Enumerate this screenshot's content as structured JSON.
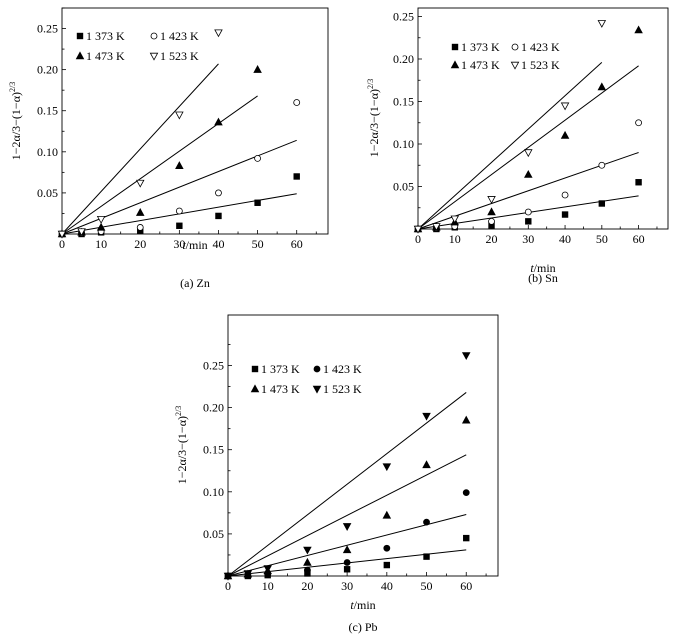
{
  "chart_data": [
    {
      "id": "zn",
      "type": "scatter",
      "caption": "(a) Zn",
      "xlabel_var": "t",
      "xlabel_unit": "/min",
      "ylabel": "1−2α/3−(1−α)",
      "ylabel_exp": "2/3",
      "xlim": [
        0,
        68
      ],
      "ylim": [
        0,
        0.275
      ],
      "xticks": [
        0,
        10,
        20,
        30,
        40,
        50,
        60
      ],
      "xtick_labels": [
        "0",
        "10",
        "20",
        "30",
        "40",
        "50",
        "60"
      ],
      "yticks": [
        0.05,
        0.1,
        0.15,
        0.2,
        0.25
      ],
      "ytick_labels": [
        "0.05",
        "0.10",
        "0.15",
        "0.20",
        "0.25"
      ],
      "series": [
        {
          "name": "1 373 K",
          "marker": "square",
          "x": [
            0,
            5,
            10,
            20,
            30,
            40,
            50,
            60
          ],
          "y": [
            0,
            0.0,
            0.002,
            0.004,
            0.01,
            0.022,
            0.038,
            0.07
          ],
          "fit": [
            0,
            60,
            0.049
          ]
        },
        {
          "name": "1 423 K",
          "marker": "circle-open",
          "x": [
            0,
            5,
            10,
            20,
            30,
            40,
            50,
            60
          ],
          "y": [
            0,
            0.001,
            0.003,
            0.008,
            0.028,
            0.05,
            0.092,
            0.16
          ],
          "fit": [
            0,
            60,
            0.114
          ]
        },
        {
          "name": "1 473 K",
          "marker": "triangle-up",
          "x": [
            0,
            5,
            10,
            20,
            30,
            40,
            50
          ],
          "y": [
            0,
            0.002,
            0.008,
            0.026,
            0.083,
            0.136,
            0.2
          ],
          "fit": [
            0,
            50,
            0.168
          ]
        },
        {
          "name": "1 523 K",
          "marker": "triangle-down-open",
          "x": [
            0,
            5,
            10,
            20,
            30,
            40
          ],
          "y": [
            0,
            0.003,
            0.018,
            0.062,
            0.145,
            0.245
          ],
          "fit": [
            0,
            40,
            0.207
          ]
        }
      ]
    },
    {
      "id": "sn",
      "type": "scatter",
      "caption": "(b) Sn",
      "xlabel_var": "t",
      "xlabel_unit": "/min",
      "ylabel": "1−2α/3−(1−α)",
      "ylabel_exp": "2/3",
      "xlim": [
        0,
        68
      ],
      "ylim": [
        0,
        0.26
      ],
      "xticks": [
        0,
        10,
        20,
        30,
        40,
        50,
        60
      ],
      "xtick_labels": [
        "0",
        "10",
        "20",
        "30",
        "40",
        "50",
        "60"
      ],
      "yticks": [
        0.05,
        0.1,
        0.15,
        0.2,
        0.25
      ],
      "ytick_labels": [
        "0.05",
        "0.10",
        "0.15",
        "0.20",
        "0.25"
      ],
      "series": [
        {
          "name": "1 373 K",
          "marker": "square",
          "x": [
            0,
            5,
            10,
            20,
            30,
            40,
            50,
            60
          ],
          "y": [
            0,
            0.0,
            0.002,
            0.004,
            0.009,
            0.017,
            0.03,
            0.055
          ],
          "fit": [
            0,
            60,
            0.039
          ]
        },
        {
          "name": "1 423 K",
          "marker": "circle-open",
          "x": [
            0,
            5,
            10,
            20,
            30,
            40,
            50,
            60
          ],
          "y": [
            0,
            0.001,
            0.003,
            0.009,
            0.02,
            0.04,
            0.075,
            0.125
          ],
          "fit": [
            0,
            60,
            0.09
          ]
        },
        {
          "name": "1 473 K",
          "marker": "triangle-up",
          "x": [
            0,
            5,
            10,
            20,
            30,
            40,
            50,
            60
          ],
          "y": [
            0,
            0.002,
            0.008,
            0.02,
            0.064,
            0.11,
            0.167,
            0.234
          ],
          "fit": [
            0,
            60,
            0.192
          ]
        },
        {
          "name": "1 523 K",
          "marker": "triangle-down-open",
          "x": [
            0,
            5,
            10,
            20,
            30,
            40,
            50
          ],
          "y": [
            0,
            0.003,
            0.012,
            0.035,
            0.09,
            0.145,
            0.242
          ],
          "fit": [
            0,
            50,
            0.196
          ]
        }
      ]
    },
    {
      "id": "pb",
      "type": "scatter",
      "caption": "(c) Pb",
      "xlabel_var": "t",
      "xlabel_unit": "/min",
      "ylabel": "1−2α/3−(1−α)",
      "ylabel_exp": "2/3",
      "xlim": [
        0,
        68
      ],
      "ylim": [
        0,
        0.31
      ],
      "xticks": [
        0,
        10,
        20,
        30,
        40,
        50,
        60
      ],
      "xtick_labels": [
        "0",
        "10",
        "20",
        "30",
        "40",
        "50",
        "60"
      ],
      "yticks": [
        0.05,
        0.1,
        0.15,
        0.2,
        0.25
      ],
      "ytick_labels": [
        "0.05",
        "0.10",
        "0.15",
        "0.20",
        "0.25"
      ],
      "series": [
        {
          "name": "1 373 K",
          "marker": "square",
          "x": [
            0,
            5,
            10,
            20,
            30,
            40,
            50,
            60
          ],
          "y": [
            0,
            0.0,
            0.001,
            0.003,
            0.008,
            0.013,
            0.023,
            0.045
          ],
          "fit": [
            0,
            60,
            0.031
          ]
        },
        {
          "name": "1 423 K",
          "marker": "circle",
          "x": [
            0,
            5,
            10,
            20,
            30,
            40,
            50,
            60
          ],
          "y": [
            0,
            0.001,
            0.002,
            0.007,
            0.016,
            0.033,
            0.064,
            0.099
          ],
          "fit": [
            0,
            60,
            0.073
          ]
        },
        {
          "name": "1 473 K",
          "marker": "triangle-up",
          "x": [
            0,
            5,
            10,
            20,
            30,
            40,
            50,
            60
          ],
          "y": [
            0,
            0.002,
            0.006,
            0.016,
            0.031,
            0.072,
            0.132,
            0.185
          ],
          "fit": [
            0,
            60,
            0.144
          ]
        },
        {
          "name": "1 523 K",
          "marker": "triangle-down",
          "x": [
            0,
            5,
            10,
            20,
            30,
            40,
            50,
            60
          ],
          "y": [
            0,
            0.003,
            0.009,
            0.031,
            0.059,
            0.13,
            0.19,
            0.262
          ],
          "fit": [
            0,
            60,
            0.218
          ]
        }
      ]
    }
  ]
}
